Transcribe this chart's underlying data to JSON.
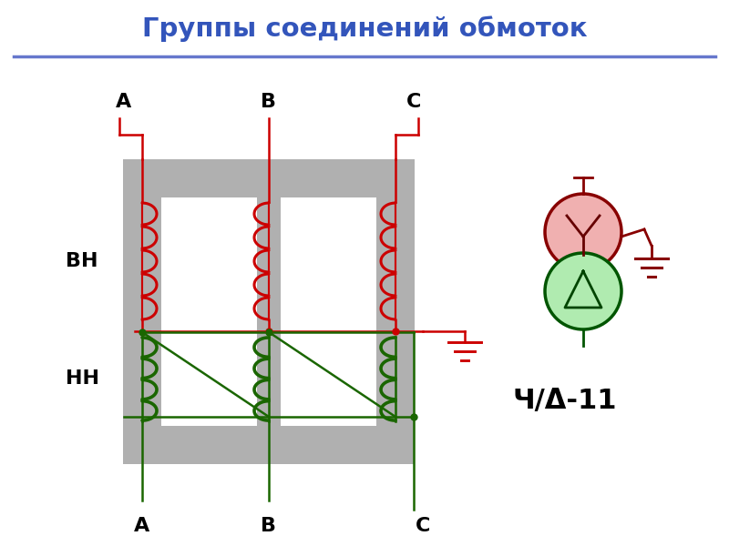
{
  "title": "Группы соединений обмоток",
  "title_color": "#3355bb",
  "title_fontsize": 21,
  "bg_color": "#ffffff",
  "red_color": "#cc0000",
  "green_color": "#1a6600",
  "gray_color": "#b0b0b0",
  "sep_color": "#6677cc",
  "label_VN": "ВН",
  "label_NN": "НН",
  "schema_label": "Ч/Δ-11",
  "lw_wire": 1.8,
  "lw_coil_red": 2.2,
  "lw_coil_green": 2.6
}
